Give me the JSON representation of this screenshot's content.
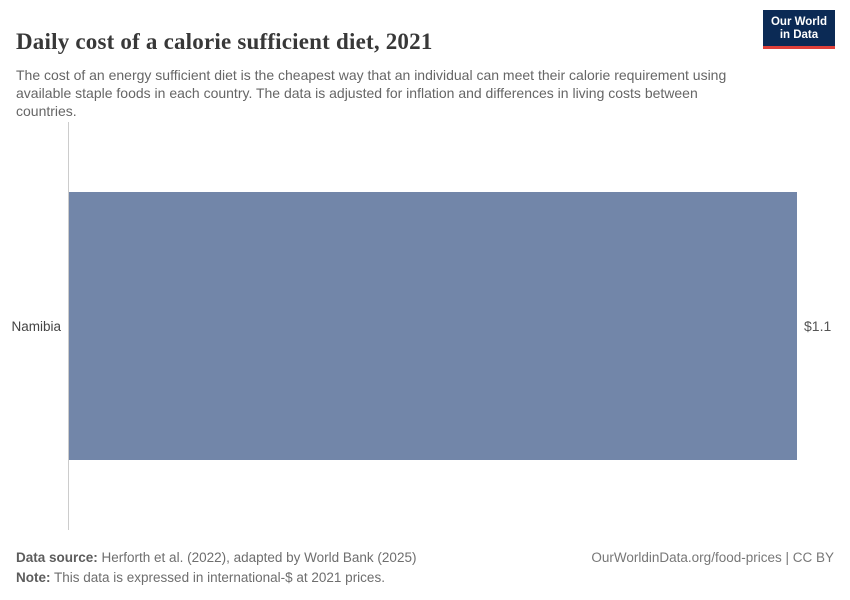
{
  "header": {
    "title": "Daily cost of a calorie sufficient diet, 2021",
    "subtitle": "The cost of an energy sufficient diet is the cheapest way that an individual can meet their calorie requirement using available staple foods in each country. The data is adjusted for inflation and differences in living costs between countries.",
    "logo": {
      "line1": "Our World",
      "line2": "in Data"
    }
  },
  "chart_data": {
    "type": "bar",
    "orientation": "horizontal",
    "title": "Daily cost of a calorie sufficient diet, 2021",
    "categories": [
      "Namibia"
    ],
    "values": [
      1.1
    ],
    "value_labels": [
      "$1.1"
    ],
    "unit": "international-$",
    "xlabel": "",
    "ylabel": "",
    "xlim": [
      0,
      1.1
    ],
    "grid": false,
    "legend": "none",
    "bar_color": "#7286a9",
    "axis_line_color": "#cccccc"
  },
  "footer": {
    "data_source_label": "Data source:",
    "data_source_text": " Herforth et al. (2022), adapted by World Bank (2025)",
    "note_label": "Note:",
    "note_text": " This data is expressed in international-$ at 2021 prices.",
    "link": "OurWorldinData.org/food-prices | CC BY"
  },
  "colors": {
    "bar": "#7286a9",
    "logo_bg": "#0b2a55",
    "logo_accent": "#e0403a",
    "title_text": "#383838",
    "subtitle_text": "#666666"
  }
}
